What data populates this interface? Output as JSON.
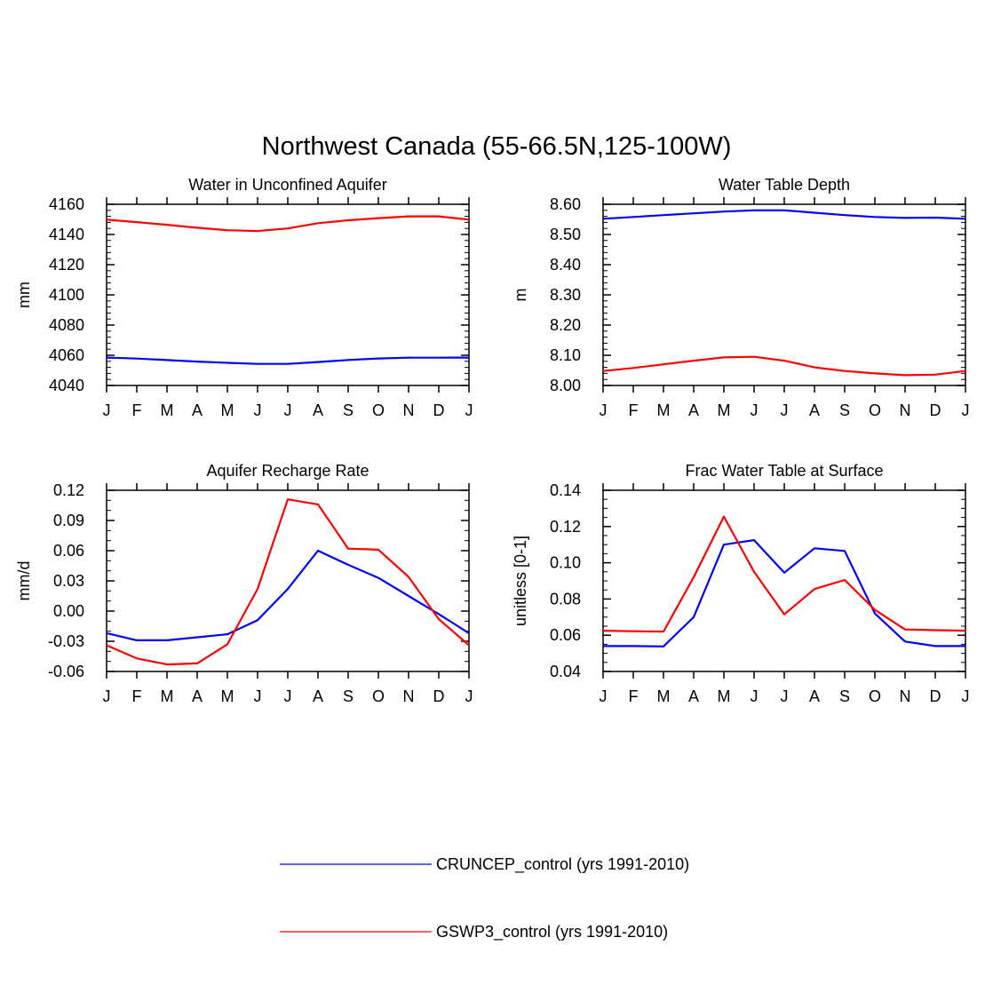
{
  "figure_title": "Northwest Canada (55-66.5N,125-100W)",
  "months": [
    "J",
    "F",
    "M",
    "A",
    "M",
    "J",
    "J",
    "A",
    "S",
    "O",
    "N",
    "D",
    "J"
  ],
  "legend": {
    "items": [
      {
        "label": "CRUNCEP_control (yrs 1991-2010)",
        "color": "#0000ff"
      },
      {
        "label": "GSWP3_control (yrs 1991-2010)",
        "color": "#ff0000"
      }
    ]
  },
  "chart_data": [
    {
      "type": "line",
      "title": "Water in Unconfined Aquifer",
      "xlabel": "",
      "ylabel": "mm",
      "ylim": [
        4040,
        4160
      ],
      "yticks": [
        4040,
        4060,
        4080,
        4100,
        4120,
        4140,
        4160
      ],
      "ytick_labels": [
        "4040",
        "4060",
        "4080",
        "4100",
        "4120",
        "4140",
        "4160"
      ],
      "yminor": 5,
      "series": [
        {
          "name": "CRUNCEP_control (yrs 1991-2010)",
          "color": "#0000ff",
          "values": [
            4058.5,
            4057.8,
            4056.8,
            4055.8,
            4055.0,
            4054.3,
            4054.3,
            4055.5,
            4056.9,
            4057.9,
            4058.4,
            4058.4,
            4058.5
          ]
        },
        {
          "name": "GSWP3_control (yrs 1991-2010)",
          "color": "#ff0000",
          "values": [
            4149.8,
            4148.2,
            4146.4,
            4144.5,
            4142.8,
            4142.3,
            4144.0,
            4147.5,
            4149.4,
            4150.8,
            4152.0,
            4152.0,
            4149.8
          ]
        }
      ]
    },
    {
      "type": "line",
      "title": "Water Table Depth",
      "xlabel": "",
      "ylabel": "m",
      "ylim": [
        8.0,
        8.6
      ],
      "yticks": [
        8.0,
        8.1,
        8.2,
        8.3,
        8.4,
        8.5,
        8.6
      ],
      "ytick_labels": [
        "8.00",
        "8.10",
        "8.20",
        "8.30",
        "8.40",
        "8.50",
        "8.60"
      ],
      "yminor": 5,
      "series": [
        {
          "name": "CRUNCEP_control (yrs 1991-2010)",
          "color": "#0000ff",
          "values": [
            8.552,
            8.558,
            8.564,
            8.57,
            8.576,
            8.58,
            8.58,
            8.572,
            8.564,
            8.558,
            8.555,
            8.556,
            8.552
          ]
        },
        {
          "name": "GSWP3_control (yrs 1991-2010)",
          "color": "#ff0000",
          "values": [
            8.048,
            8.058,
            8.07,
            8.082,
            8.093,
            8.095,
            8.082,
            8.06,
            8.048,
            8.04,
            8.034,
            8.036,
            8.048
          ]
        }
      ]
    },
    {
      "type": "line",
      "title": "Aquifer Recharge Rate",
      "xlabel": "",
      "ylabel": "mm/d",
      "ylim": [
        -0.06,
        0.12
      ],
      "yticks": [
        -0.06,
        -0.03,
        0.0,
        0.03,
        0.06,
        0.09,
        0.12
      ],
      "ytick_labels": [
        "-0.06",
        "-0.03",
        "0.00",
        "0.03",
        "0.06",
        "0.09",
        "0.12"
      ],
      "yminor": 3,
      "series": [
        {
          "name": "CRUNCEP_control (yrs 1991-2010)",
          "color": "#0000ff",
          "values": [
            -0.022,
            -0.029,
            -0.029,
            -0.026,
            -0.023,
            -0.009,
            0.022,
            0.06,
            0.046,
            0.033,
            0.015,
            -0.003,
            -0.022
          ]
        },
        {
          "name": "GSWP3_control (yrs 1991-2010)",
          "color": "#ff0000",
          "values": [
            -0.034,
            -0.047,
            -0.053,
            -0.052,
            -0.033,
            0.022,
            0.111,
            0.106,
            0.062,
            0.061,
            0.034,
            -0.008,
            -0.034
          ]
        }
      ]
    },
    {
      "type": "line",
      "title": "Frac Water Table at Surface",
      "xlabel": "",
      "ylabel": "unitless [0-1]",
      "ylim": [
        0.04,
        0.14
      ],
      "yticks": [
        0.04,
        0.06,
        0.08,
        0.1,
        0.12,
        0.14
      ],
      "ytick_labels": [
        "0.04",
        "0.06",
        "0.08",
        "0.10",
        "0.12",
        "0.14"
      ],
      "yminor": 4,
      "series": [
        {
          "name": "CRUNCEP_control (yrs 1991-2010)",
          "color": "#0000ff",
          "values": [
            0.054,
            0.054,
            0.0538,
            0.07,
            0.11,
            0.1125,
            0.0945,
            0.108,
            0.1065,
            0.072,
            0.0565,
            0.054,
            0.054
          ]
        },
        {
          "name": "GSWP3_control (yrs 1991-2010)",
          "color": "#ff0000",
          "values": [
            0.0625,
            0.0622,
            0.062,
            0.092,
            0.1255,
            0.095,
            0.0715,
            0.0855,
            0.0905,
            0.074,
            0.0632,
            0.0628,
            0.0625
          ]
        }
      ]
    }
  ]
}
